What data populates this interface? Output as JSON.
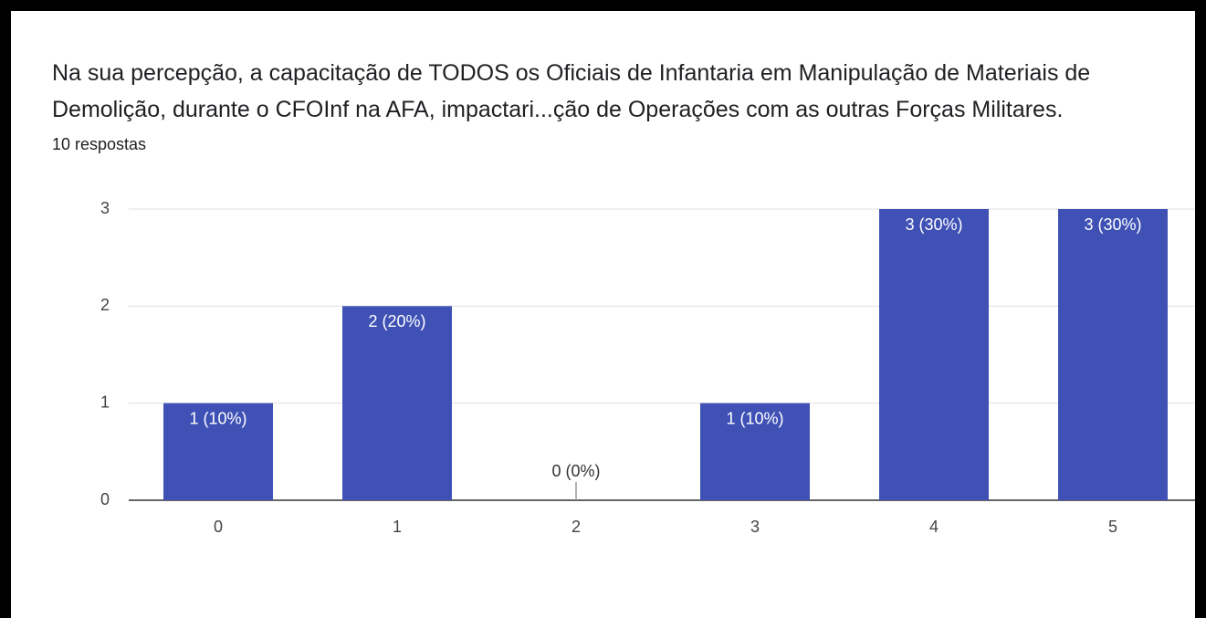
{
  "chart_data": {
    "type": "bar",
    "title": "Na sua percepção,  a capacitação de TODOS os Oficiais de Infantaria em Manipulação de Materiais de Demolição,  durante o CFOInf na AFA, impactari...ção de Operações com as outras Forças Militares.",
    "subtitle": "10 respostas",
    "categories": [
      "0",
      "1",
      "2",
      "3",
      "4",
      "5"
    ],
    "values": [
      1,
      2,
      0,
      1,
      3,
      3
    ],
    "value_labels": [
      "1 (10%)",
      "2 (20%)",
      "0 (0%)",
      "1 (10%)",
      "3 (30%)",
      "3 (30%)"
    ],
    "color": "#3f51b5",
    "ylim": [
      0,
      3
    ],
    "yticks": [
      0,
      1,
      2,
      3
    ],
    "grid": true
  }
}
